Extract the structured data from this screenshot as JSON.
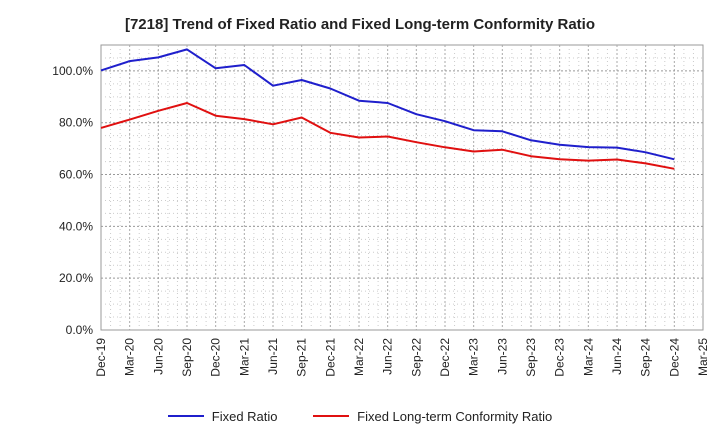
{
  "chart_data": {
    "type": "line",
    "title": "[7218]  Trend of Fixed Ratio and Fixed Long-term Conformity Ratio",
    "xlabel": "",
    "ylabel": "",
    "ylim": [
      0,
      110
    ],
    "y_ticks": [
      0,
      20,
      40,
      60,
      80,
      100
    ],
    "y_tick_labels": [
      "0.0%",
      "20.0%",
      "40.0%",
      "60.0%",
      "80.0%",
      "100.0%"
    ],
    "categories": [
      "Dec-19",
      "Mar-20",
      "Jun-20",
      "Sep-20",
      "Dec-20",
      "Mar-21",
      "Jun-21",
      "Sep-21",
      "Dec-21",
      "Mar-22",
      "Jun-22",
      "Sep-22",
      "Dec-22",
      "Mar-23",
      "Jun-23",
      "Sep-23",
      "Dec-23",
      "Mar-24",
      "Jun-24",
      "Sep-24",
      "Dec-24",
      "Mar-25"
    ],
    "grid": true,
    "legend_position": "bottom",
    "series": [
      {
        "name": "Fixed Ratio",
        "color": "#1f1fcc",
        "values": [
          100.2,
          103.8,
          105.2,
          108.3,
          101.0,
          102.3,
          94.3,
          96.5,
          93.2,
          88.5,
          87.6,
          83.3,
          80.6,
          77.1,
          76.7,
          73.2,
          71.5,
          70.6,
          70.4,
          68.6,
          65.9,
          null
        ]
      },
      {
        "name": "Fixed Long-term Conformity Ratio",
        "color": "#e01010",
        "values": [
          78.0,
          81.2,
          84.6,
          87.6,
          82.7,
          81.4,
          79.4,
          82.0,
          76.1,
          74.3,
          74.7,
          72.5,
          70.5,
          68.9,
          69.6,
          67.1,
          65.9,
          65.4,
          65.8,
          64.3,
          62.2,
          null
        ]
      }
    ]
  }
}
